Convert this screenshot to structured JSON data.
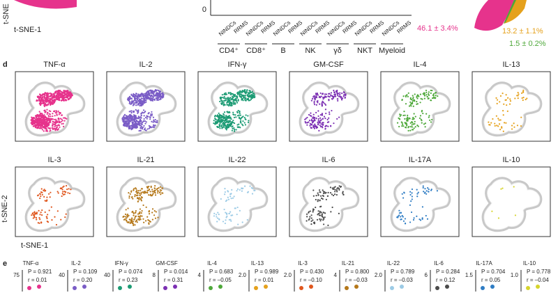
{
  "top": {
    "axis_left": "t-SNE",
    "axis_bottom": "t-SNE-1",
    "ytick": "0",
    "pairs": [
      "NINDCs",
      "RRMS"
    ],
    "groups": [
      "CD4⁺",
      "CD8⁺",
      "B",
      "NK",
      "γδ",
      "NKT",
      "Myeloid"
    ],
    "pie_labels": [
      "13.2 ± 1.1%",
      "46.1 ± 3.4%",
      "1.5 ± 0.2%"
    ]
  },
  "d": {
    "label": "d",
    "axis_y": "t-SNE-2",
    "axis_x": "t-SNE-1",
    "panels": [
      {
        "title": "TNF-α",
        "color": "#e6338c"
      },
      {
        "title": "IL-2",
        "color": "#7a5cc6"
      },
      {
        "title": "IFN-γ",
        "color": "#1c9b74"
      },
      {
        "title": "GM-CSF",
        "color": "#7b2fb3"
      },
      {
        "title": "IL-4",
        "color": "#4ea83a"
      },
      {
        "title": "IL-13",
        "color": "#e5a11c"
      },
      {
        "title": "IL-3",
        "color": "#e0561d"
      },
      {
        "title": "IL-21",
        "color": "#b5781a"
      },
      {
        "title": "IL-22",
        "color": "#9ccbe6"
      },
      {
        "title": "IL-6",
        "color": "#4a4a4a"
      },
      {
        "title": "IL-17A",
        "color": "#2f7dc4"
      },
      {
        "title": "IL-10",
        "color": "#d6d42c"
      }
    ]
  },
  "e": {
    "label": "e",
    "columns": [
      {
        "name": "TNF-α",
        "p": "P = 0.921",
        "r": "r = 0.01",
        "tick": "75"
      },
      {
        "name": "IL-2",
        "p": "P = 0.109",
        "r": "r = 0.20",
        "tick": "40"
      },
      {
        "name": "IFN-γ",
        "p": "P = 0.074",
        "r": "r = 0.23",
        "tick": "40"
      },
      {
        "name": "GM-CSF",
        "p": "P = 0.014",
        "r": "r = 0.31",
        "tick": "8"
      },
      {
        "name": "IL-4",
        "p": "P = 0.683",
        "r": "r = –0.05",
        "tick": "4"
      },
      {
        "name": "IL-13",
        "p": "P = 0.989",
        "r": "r = 0.01",
        "tick": "2.0"
      },
      {
        "name": "IL-3",
        "p": "P = 0.430",
        "r": "r = –0.10",
        "tick": "2.0"
      },
      {
        "name": "IL-21",
        "p": "P = 0.800",
        "r": "r = –0.03",
        "tick": "4"
      },
      {
        "name": "IL-22",
        "p": "P = 0.789",
        "r": "r = –0.03",
        "tick": "2.0"
      },
      {
        "name": "IL-6",
        "p": "P = 0.284",
        "r": "r = 0.12",
        "tick": "6"
      },
      {
        "name": "IL-17A",
        "p": "P = 0.704",
        "r": "r = 0.05",
        "tick": "1.5"
      },
      {
        "name": "IL-10",
        "p": "P = 0.778",
        "r": "r = –0.04",
        "tick": "1.0"
      }
    ]
  }
}
